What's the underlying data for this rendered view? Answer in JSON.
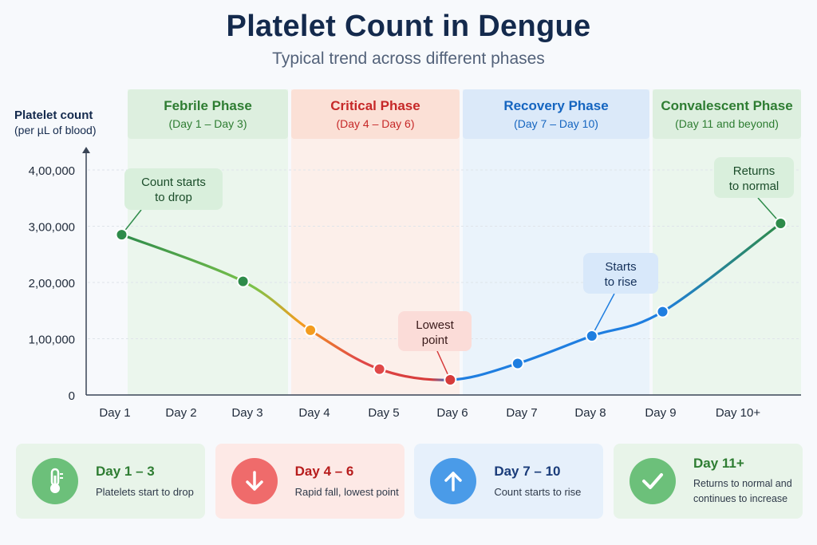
{
  "title": "Platelet Count in Dengue",
  "subtitle": "Typical trend across different phases",
  "phases": [
    {
      "name": "Febrile Phase",
      "range": "(Day 1 – Day 3)",
      "color": "#2e7d32",
      "bg": "#e7f4e8",
      "head_bg": "#ddefdf"
    },
    {
      "name": "Critical Phase",
      "range": "(Day 4 – Day 6)",
      "color": "#c62828",
      "bg": "#fdebe4",
      "head_bg": "#fbe0d6"
    },
    {
      "name": "Recovery Phase",
      "range": "(Day 7 – Day 10)",
      "color": "#1565c0",
      "bg": "#e6f0fb",
      "head_bg": "#dbe9f9"
    },
    {
      "name": "Convalescent Phase",
      "range": "(Day 11 and beyond)",
      "color": "#2e7d32",
      "bg": "#e7f4e8",
      "head_bg": "#ddefdf"
    }
  ],
  "chart_data": {
    "type": "line",
    "ylabel": [
      "Platelet count",
      "(per µL of blood)"
    ],
    "categories": [
      "Day 1",
      "Day 2",
      "Day 3",
      "Day 4",
      "Day 5",
      "Day 6",
      "Day 7",
      "Day 8",
      "Day 9",
      "Day 10+"
    ],
    "yticks": [
      {
        "value": 0,
        "label": "0"
      },
      {
        "value": 100000,
        "label": "1,00,000"
      },
      {
        "value": 200000,
        "label": "2,00,000"
      },
      {
        "value": 300000,
        "label": "3,00,000"
      },
      {
        "value": 400000,
        "label": "4,00,000"
      }
    ],
    "ylim": [
      0,
      400000
    ],
    "grid": true,
    "points": [
      {
        "x": 1,
        "y": 285000,
        "color": "#2e8b4a"
      },
      {
        "x": 2.8,
        "y": 202000,
        "color": "#2e8b4a"
      },
      {
        "x": 3.8,
        "y": 115000,
        "color": "#f39c1e"
      },
      {
        "x": 4.8,
        "y": 46000,
        "color": "#e04848"
      },
      {
        "x": 5.85,
        "y": 27000,
        "color": "#d63a3a"
      },
      {
        "x": 6.85,
        "y": 56000,
        "color": "#1f7ee0"
      },
      {
        "x": 7.95,
        "y": 105000,
        "color": "#1f7ee0"
      },
      {
        "x": 9.0,
        "y": 148000,
        "color": "#1f7ee0"
      },
      {
        "x": 10.75,
        "y": 305000,
        "color": "#2e8b4a"
      }
    ],
    "annotations": [
      {
        "text": [
          "Count starts",
          "to drop"
        ],
        "point": 0,
        "style": "green"
      },
      {
        "text": [
          "Lowest",
          "point"
        ],
        "point": 4,
        "style": "red"
      },
      {
        "text": [
          "Starts",
          "to rise"
        ],
        "point": 6,
        "style": "blue"
      },
      {
        "text": [
          "Returns",
          "to normal"
        ],
        "point": 8,
        "style": "green"
      }
    ]
  },
  "cards": [
    {
      "title": "Day 1 – 3",
      "desc": "Platelets start to drop",
      "icon": "thermometer-icon",
      "color": "#2e7d32",
      "icon_bg": "#6cc07a",
      "bg": "#e8f4e9"
    },
    {
      "title": "Day 4 – 6",
      "desc": "Rapid fall, lowest point",
      "icon": "arrow-down-icon",
      "color": "#b71c1c",
      "icon_bg": "#ef6b6b",
      "bg": "#fde9e6"
    },
    {
      "title": "Day 7 – 10",
      "desc": "Count starts to rise",
      "icon": "arrow-up-icon",
      "color": "#1a3c7a",
      "icon_bg": "#4a9be8",
      "bg": "#e6f0fb"
    },
    {
      "title": "Day 11+",
      "desc": "Returns to normal and continues to increase",
      "icon": "check-icon",
      "color": "#2e7d32",
      "icon_bg": "#6cc07a",
      "bg": "#e8f4e9"
    }
  ]
}
